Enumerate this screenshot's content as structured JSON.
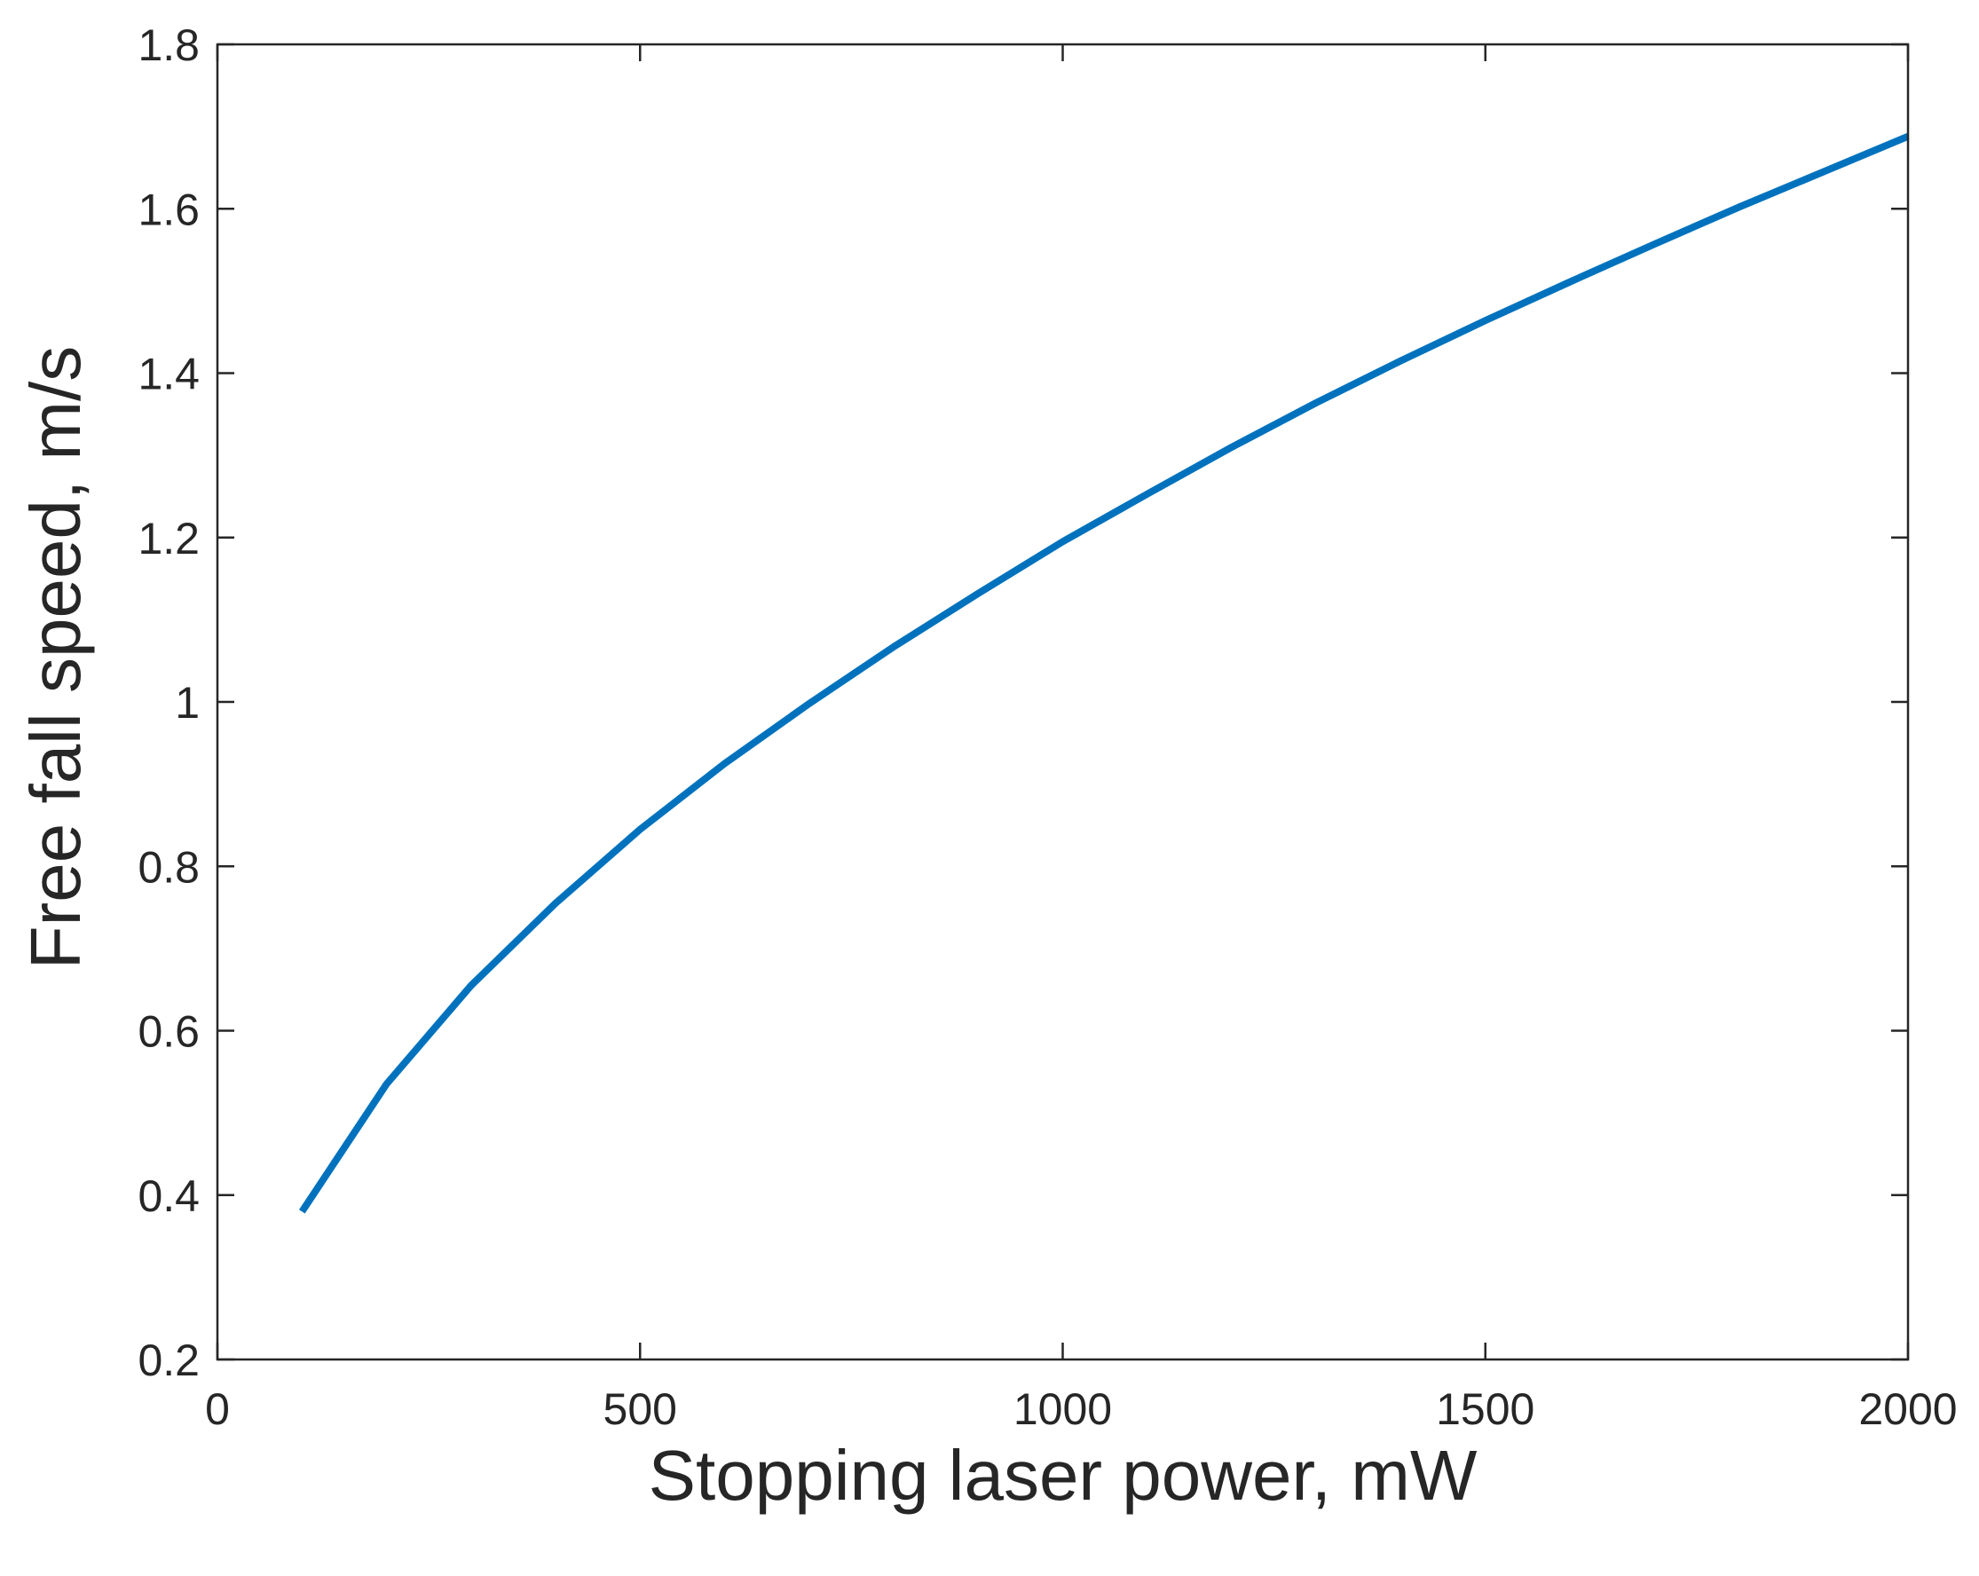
{
  "chart_data": {
    "type": "line",
    "title": "",
    "xlabel": "Stopping laser power, mW",
    "ylabel": "Free fall speed, m/s",
    "xlim": [
      0,
      2000
    ],
    "ylim": [
      0.2,
      1.8
    ],
    "xticks": [
      0,
      500,
      1000,
      1500,
      2000
    ],
    "yticks": [
      0.2,
      0.4,
      0.6,
      0.8,
      1,
      1.2,
      1.4,
      1.6,
      1.8
    ],
    "xtick_labels": [
      "0",
      "500",
      "1000",
      "1500",
      "2000"
    ],
    "ytick_labels": [
      "0.2",
      "0.4",
      "0.6",
      "0.8",
      "1",
      "1.2",
      "1.4",
      "1.6",
      "1.8"
    ],
    "grid": false,
    "series": [
      {
        "color": "#0072BD",
        "x": [
          100,
          200,
          300,
          400,
          500,
          600,
          700,
          800,
          900,
          1000,
          1100,
          1200,
          1300,
          1400,
          1500,
          1600,
          1700,
          1800,
          1900,
          2000
        ],
        "y": [
          0.38,
          0.535,
          0.655,
          0.755,
          0.845,
          0.925,
          0.998,
          1.067,
          1.132,
          1.195,
          1.253,
          1.31,
          1.364,
          1.415,
          1.464,
          1.511,
          1.557,
          1.602,
          1.645,
          1.688
        ]
      }
    ]
  }
}
